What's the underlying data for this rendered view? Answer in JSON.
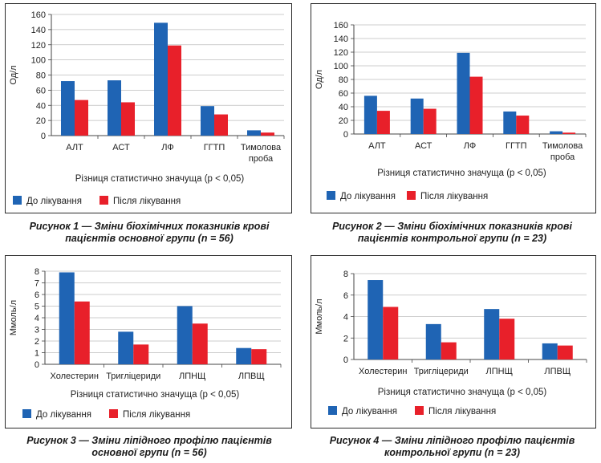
{
  "colors": {
    "before": "#1f64b4",
    "after": "#e8202a",
    "frame": "#2b2b2b",
    "grid": "#bdbdbd"
  },
  "legend": {
    "before": "До лікування",
    "after": "Після лікування"
  },
  "captions": [
    {
      "prefix": "Рисунок 1 — ",
      "line1": "Зміни біохімічних показників крові",
      "line2": "пацієнтів основної групи (n = 56)"
    },
    {
      "prefix": "Рисунок 2 — ",
      "line1": "Зміни біохімічних показників крові",
      "line2": "пацієнтів контрольної групи (n = 23)"
    },
    {
      "prefix": "Рисунок 3 — ",
      "line1": "Зміни ліпідного профілю пацієнтів",
      "line2": "основної групи (n = 56)"
    },
    {
      "prefix": "Рисунок 4 — ",
      "line1": "Зміни ліпідного профілю пацієнтів",
      "line2": "контрольної групи (n = 23)"
    }
  ],
  "chart_data": [
    {
      "type": "bar",
      "ylabel": "Од/л",
      "xlabel": "Різниця статистично значуща (p < 0,05)",
      "ylim": [
        0,
        160
      ],
      "yticks": [
        0,
        20,
        40,
        60,
        80,
        100,
        120,
        140,
        160
      ],
      "categories": [
        [
          "АЛТ"
        ],
        [
          "АСТ"
        ],
        [
          "ЛФ"
        ],
        [
          "ГГТП"
        ],
        [
          "Тимолова",
          "проба"
        ]
      ],
      "series": [
        {
          "name": "До лікування",
          "values": [
            72,
            73,
            149,
            39,
            7
          ]
        },
        {
          "name": "Після лікування",
          "values": [
            47,
            44,
            119,
            28,
            4
          ]
        }
      ],
      "grid": true,
      "legend": "bottom"
    },
    {
      "type": "bar",
      "ylabel": "Од/л",
      "xlabel": "Різниця статистично значуща (p < 0,05)",
      "ylim": [
        0,
        160
      ],
      "yticks": [
        0,
        20,
        40,
        60,
        80,
        100,
        120,
        140,
        160
      ],
      "categories": [
        [
          "АЛТ"
        ],
        [
          "АСТ"
        ],
        [
          "ЛФ"
        ],
        [
          "ГГТП"
        ],
        [
          "Тимолова",
          "проба"
        ]
      ],
      "series": [
        {
          "name": "До лікування",
          "values": [
            56,
            52,
            119,
            33,
            4
          ]
        },
        {
          "name": "Після лікування",
          "values": [
            34,
            37,
            84,
            27,
            2
          ]
        }
      ],
      "grid": true,
      "legend": "bottom"
    },
    {
      "type": "bar",
      "ylabel": "Ммоль/л",
      "xlabel": "Різниця статистично значуща (p < 0,05)",
      "ylim": [
        0,
        8
      ],
      "yticks": [
        0,
        1,
        2,
        3,
        4,
        5,
        6,
        7,
        8
      ],
      "categories": [
        [
          "Холестерин"
        ],
        [
          "Тригліцериди"
        ],
        [
          "ЛПНЩ"
        ],
        [
          "ЛПВЩ"
        ]
      ],
      "series": [
        {
          "name": "До лікування",
          "values": [
            7.9,
            2.8,
            5.0,
            1.4
          ]
        },
        {
          "name": "Після лікування",
          "values": [
            5.4,
            1.7,
            3.5,
            1.3
          ]
        }
      ],
      "grid": true,
      "legend": "bottom"
    },
    {
      "type": "bar",
      "ylabel": "Ммоль/л",
      "xlabel": "Різниця статистично значуща (p < 0,05)",
      "ylim": [
        0,
        8
      ],
      "yticks": [
        0,
        2,
        4,
        6,
        8
      ],
      "categories": [
        [
          "Холестерин"
        ],
        [
          "Тригліцериди"
        ],
        [
          "ЛПНЩ"
        ],
        [
          "ЛПВЩ"
        ]
      ],
      "series": [
        {
          "name": "До лікування",
          "values": [
            7.4,
            3.3,
            4.7,
            1.5
          ]
        },
        {
          "name": "Після лікування",
          "values": [
            4.9,
            1.6,
            3.8,
            1.3
          ]
        }
      ],
      "grid": true,
      "legend": "bottom"
    }
  ]
}
